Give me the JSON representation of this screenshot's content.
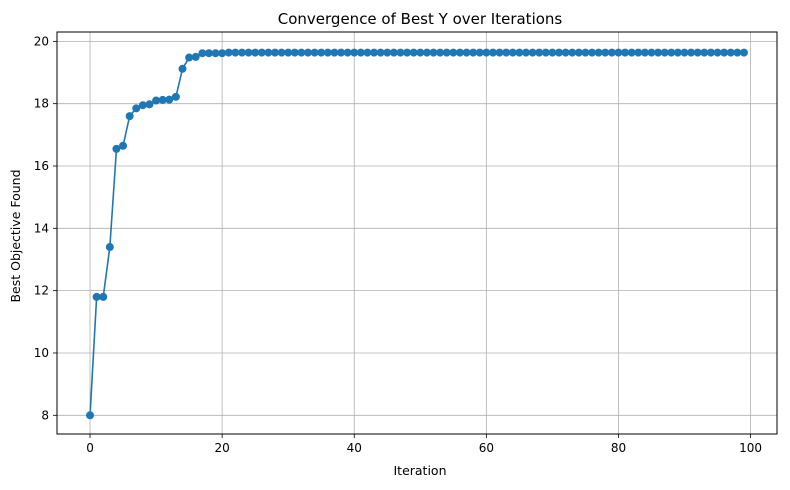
{
  "chart_data": {
    "type": "line",
    "title": "Convergence of Best Y over Iterations",
    "xlabel": "Iteration",
    "ylabel": "Best Objective Found",
    "xlim": [
      -5,
      104
    ],
    "ylim": [
      7.4,
      20.3
    ],
    "xticks": [
      0,
      20,
      40,
      60,
      80,
      100
    ],
    "yticks": [
      8,
      10,
      12,
      14,
      16,
      18,
      20
    ],
    "grid": true,
    "markers": true,
    "series": [
      {
        "color": "#1f77b4",
        "x": [
          0,
          1,
          2,
          3,
          4,
          5,
          6,
          7,
          8,
          9,
          10,
          11,
          12,
          13,
          14,
          15,
          16,
          17,
          18,
          19,
          20,
          21,
          22,
          23,
          24,
          25,
          26,
          27,
          28,
          29,
          30,
          31,
          32,
          33,
          34,
          35,
          36,
          37,
          38,
          39,
          40,
          41,
          42,
          43,
          44,
          45,
          46,
          47,
          48,
          49,
          50,
          51,
          52,
          53,
          54,
          55,
          56,
          57,
          58,
          59,
          60,
          61,
          62,
          63,
          64,
          65,
          66,
          67,
          68,
          69,
          70,
          71,
          72,
          73,
          74,
          75,
          76,
          77,
          78,
          79,
          80,
          81,
          82,
          83,
          84,
          85,
          86,
          87,
          88,
          89,
          90,
          91,
          92,
          93,
          94,
          95,
          96,
          97,
          98,
          99
        ],
        "y": [
          8.0,
          11.8,
          11.8,
          13.4,
          16.55,
          16.65,
          17.6,
          17.85,
          17.95,
          17.98,
          18.1,
          18.12,
          18.13,
          18.22,
          19.12,
          19.48,
          19.5,
          19.62,
          19.62,
          19.62,
          19.62,
          19.64,
          19.64,
          19.64,
          19.64,
          19.64,
          19.64,
          19.64,
          19.64,
          19.64,
          19.64,
          19.64,
          19.64,
          19.64,
          19.64,
          19.64,
          19.64,
          19.64,
          19.64,
          19.64,
          19.64,
          19.64,
          19.64,
          19.64,
          19.64,
          19.64,
          19.64,
          19.64,
          19.64,
          19.64,
          19.64,
          19.64,
          19.64,
          19.64,
          19.64,
          19.64,
          19.64,
          19.64,
          19.64,
          19.64,
          19.64,
          19.64,
          19.64,
          19.64,
          19.64,
          19.64,
          19.64,
          19.64,
          19.64,
          19.64,
          19.64,
          19.64,
          19.64,
          19.64,
          19.64,
          19.64,
          19.64,
          19.64,
          19.64,
          19.64,
          19.64,
          19.64,
          19.64,
          19.64,
          19.64,
          19.64,
          19.64,
          19.64,
          19.64,
          19.64,
          19.64,
          19.64,
          19.64,
          19.64,
          19.64,
          19.64,
          19.64,
          19.64,
          19.64,
          19.64
        ]
      }
    ]
  }
}
